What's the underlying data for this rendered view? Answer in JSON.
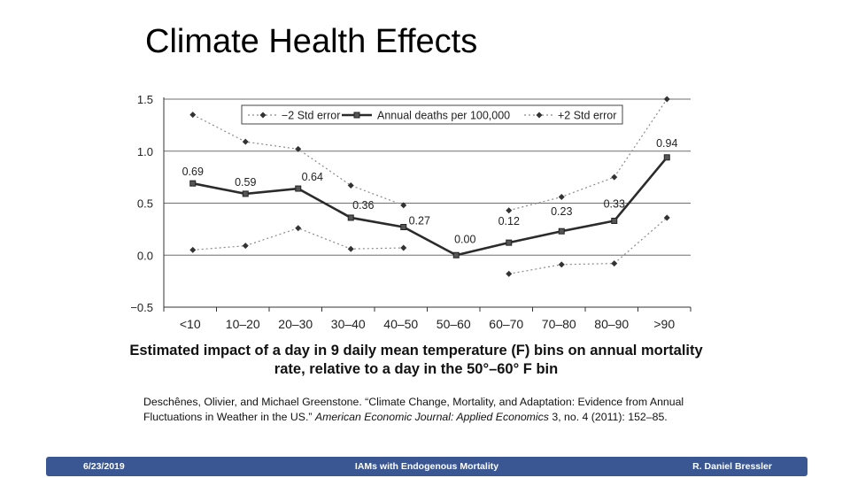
{
  "slide": {
    "title": "Climate Health Effects"
  },
  "chart_data": {
    "type": "line",
    "categories": [
      "<10",
      "10–20",
      "20–30",
      "30–40",
      "40–50",
      "50–60",
      "60–70",
      "70–80",
      "80–90",
      ">90"
    ],
    "ylim": [
      -0.5,
      1.5
    ],
    "yticks": [
      -0.5,
      0.0,
      0.5,
      1.0,
      1.5
    ],
    "ytick_labels": [
      "−0.5",
      "0.0",
      "0.5",
      "1.0",
      "1.5"
    ],
    "grid": "horizontal",
    "legend_position": "top",
    "series": [
      {
        "name": "−2 Std error",
        "style": "dotted",
        "values": [
          0.05,
          0.09,
          0.26,
          0.06,
          0.07,
          null,
          -0.18,
          -0.09,
          -0.08,
          0.36
        ]
      },
      {
        "name": "Annual deaths per 100,000",
        "style": "solid",
        "values": [
          0.69,
          0.59,
          0.64,
          0.36,
          0.27,
          0.0,
          0.12,
          0.23,
          0.33,
          0.94
        ],
        "data_labels": [
          "0.69",
          "0.59",
          "0.64",
          "0.36",
          "0.27",
          "0.00",
          "0.12",
          "0.23",
          "0.33",
          "0.94"
        ]
      },
      {
        "name": "+2 Std error",
        "style": "dotted",
        "values": [
          1.35,
          1.09,
          1.02,
          0.67,
          0.48,
          null,
          0.43,
          0.56,
          0.75,
          1.5
        ]
      }
    ],
    "caption": "Estimated impact of a day in 9 daily mean temperature (F) bins on annual mortality rate, relative to a day in the 50°–60° F bin",
    "colors": {
      "line": "#2b2b2b",
      "grid": "#6e6e6e",
      "dotted": "#8a8a8a"
    }
  },
  "citation": {
    "part1": "Deschênes, Olivier, and Michael Greenstone. “Climate Change, Mortality, and Adaptation: Evidence from Annual Fluctuations in Weather in the US.” ",
    "journal": "American Economic Journal: Applied Economics",
    "part2": " 3, no. 4 (2011): 152–85."
  },
  "footer": {
    "date": "6/23/2019",
    "title": "IAMs with Endogenous Mortality",
    "author": "R. Daniel Bressler",
    "color": "#3a5693"
  }
}
